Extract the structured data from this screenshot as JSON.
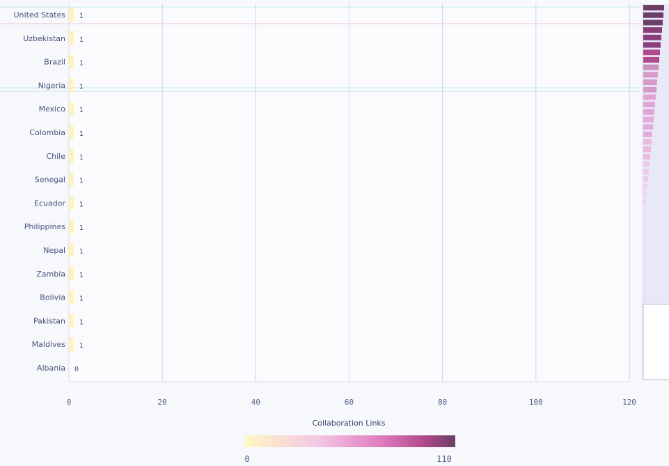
{
  "chart_data": {
    "type": "bar",
    "orientation": "horizontal",
    "categories": [
      "United States",
      "Uzbekistan",
      "Brazil",
      "Nigeria",
      "Mexico",
      "Colombia",
      "Chile",
      "Senegal",
      "Ecuador",
      "Philippines",
      "Nepal",
      "Zambia",
      "Bolivia",
      "Pakistan",
      "Maldives",
      "Albania"
    ],
    "values": [
      1,
      1,
      1,
      1,
      1,
      1,
      1,
      1,
      1,
      1,
      1,
      1,
      1,
      1,
      1,
      0
    ],
    "data_labels": [
      "1",
      "1",
      "1",
      "1",
      "1",
      "1",
      "1",
      "1",
      "1",
      "1",
      "1",
      "1",
      "1",
      "1",
      "1",
      "0"
    ],
    "xlabel": "Collaboration Links",
    "xlim": [
      0,
      120
    ],
    "xticks": [
      "0",
      "20",
      "40",
      "60",
      "80",
      "100",
      "120"
    ],
    "grid": true,
    "colorscale": {
      "min_label": "0",
      "max_label": "110",
      "colors": [
        "#fff7c2",
        "#f3c6e4",
        "#e07bbf",
        "#b04a8a",
        "#6d3f66"
      ]
    }
  }
}
